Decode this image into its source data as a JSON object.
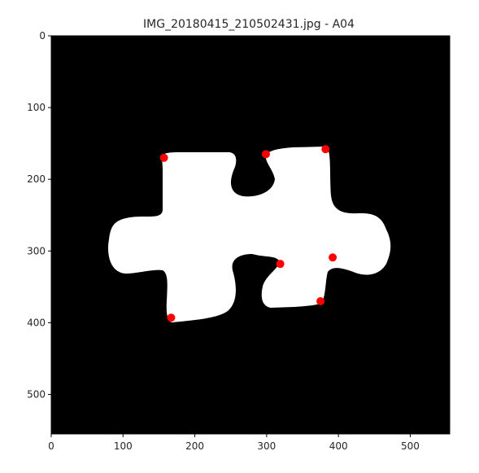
{
  "chart_data": {
    "type": "scatter",
    "title": "IMG_20180415_210502431.jpg - A04",
    "xlabel": "",
    "ylabel": "",
    "xlim": [
      0,
      555
    ],
    "ylim": [
      555,
      0
    ],
    "y_inverted": true,
    "grid": false,
    "x_ticks": [
      "0",
      "100",
      "200",
      "300",
      "400",
      "500"
    ],
    "y_ticks": [
      "0",
      "100",
      "200",
      "300",
      "400",
      "500"
    ],
    "image": {
      "kind": "binary-mask",
      "background_color": "#000000",
      "foreground_color": "#ffffff",
      "depicts": "puzzle piece silhouette"
    },
    "points": {
      "color": "#ff0000",
      "x": [
        157,
        299,
        382,
        319,
        392,
        375,
        167
      ],
      "y": [
        170,
        165,
        158,
        318,
        309,
        370,
        393
      ]
    }
  }
}
